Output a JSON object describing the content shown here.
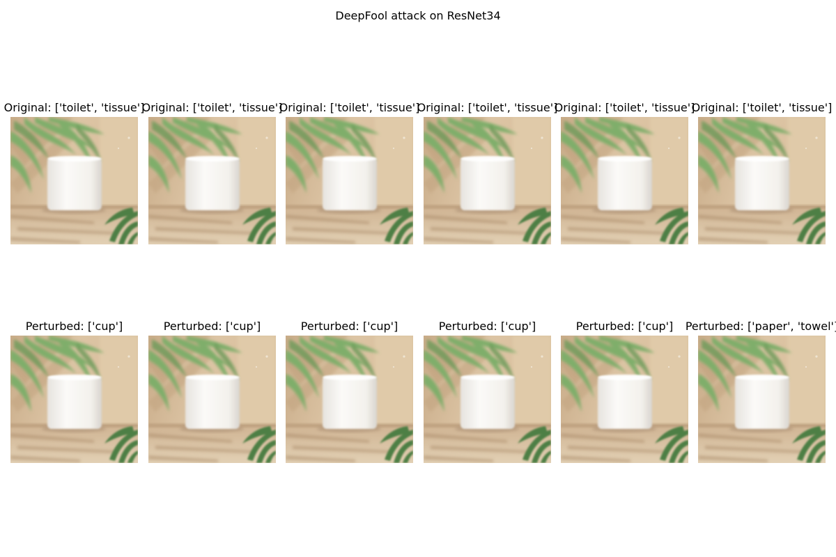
{
  "figure": {
    "title": "DeepFool attack on ResNet34"
  },
  "rows": [
    {
      "row_name": "original",
      "titles": [
        "Original: ['toilet', 'tissue']",
        "Original: ['toilet', 'tissue']",
        "Original: ['toilet', 'tissue']",
        "Original: ['toilet', 'tissue']",
        "Original: ['toilet', 'tissue']",
        "Original: ['toilet', 'tissue']"
      ]
    },
    {
      "row_name": "perturbed",
      "titles": [
        "Perturbed: ['cup']",
        "Perturbed: ['cup']",
        "Perturbed: ['cup']",
        "Perturbed: ['cup']",
        "Perturbed: ['cup']",
        "Perturbed: ['paper', 'towel']"
      ]
    }
  ],
  "image": {
    "subject": "white toilet paper roll on beige shelf with green palm leaves",
    "colors": {
      "wall": "#d8c0a0",
      "shelf": "#c9ad8c",
      "leaf": "#7fae6a",
      "leaf_dark": "#4e7f45",
      "roll": "#f4f2ee"
    }
  }
}
